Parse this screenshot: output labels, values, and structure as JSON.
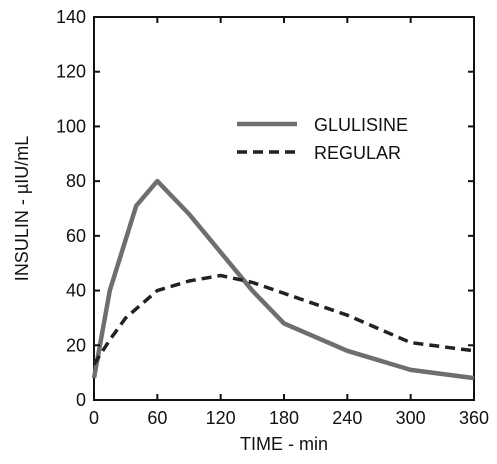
{
  "chart_data": {
    "type": "line",
    "xlabel": "TIME - min",
    "ylabel": "INSULIN - µIU/mL",
    "xlim": [
      0,
      360
    ],
    "ylim": [
      0,
      140
    ],
    "xticks": [
      0,
      60,
      120,
      180,
      240,
      300,
      360
    ],
    "yticks": [
      0,
      20,
      40,
      60,
      80,
      100,
      120,
      140
    ],
    "grid": false,
    "legend_position": "top-right",
    "series": [
      {
        "name": "GLULISINE",
        "line_style": "solid",
        "color": "#6e6e6e",
        "x": [
          0,
          15,
          40,
          60,
          90,
          120,
          150,
          180,
          240,
          300,
          360
        ],
        "y": [
          8,
          40,
          71,
          80,
          68,
          54,
          40,
          28,
          18,
          11,
          8
        ]
      },
      {
        "name": "REGULAR",
        "line_style": "dashed",
        "color": "#222222",
        "x": [
          0,
          15,
          30,
          60,
          90,
          120,
          150,
          180,
          240,
          300,
          360
        ],
        "y": [
          13,
          22,
          30,
          40,
          43.5,
          45.5,
          43,
          39,
          31,
          21,
          18
        ]
      }
    ]
  }
}
